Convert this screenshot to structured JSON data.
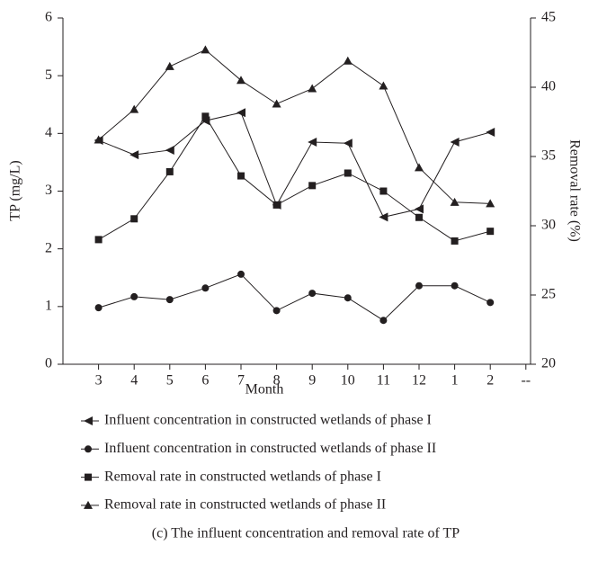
{
  "chart_data": {
    "type": "line",
    "caption": "(c) The influent concentration and removal rate of TP",
    "x_label": "Month",
    "y_label": "TP (mg/L)",
    "y2_label": "Removal rate (%)",
    "categories": [
      "3",
      "4",
      "5",
      "6",
      "7",
      "8",
      "9",
      "10",
      "11",
      "12",
      "1",
      "2",
      "--"
    ],
    "ylim": [
      0,
      6
    ],
    "yticks": [
      0,
      1,
      2,
      3,
      4,
      5,
      6
    ],
    "y2lim": [
      20,
      45
    ],
    "y2ticks": [
      20,
      25,
      30,
      35,
      40,
      45
    ],
    "series": [
      {
        "name": "Influent concentration in constructed wetlands of phase I",
        "color": "#231f20",
        "marker": "triangle-left",
        "values": [
          3.88,
          3.63,
          3.71,
          4.22,
          4.36,
          2.76,
          3.85,
          3.83,
          2.55,
          2.69,
          3.85,
          4.02,
          null
        ]
      },
      {
        "name": "Influent concentration in constructed wetlands of phase II",
        "color": "#231f20",
        "marker": "circle",
        "values": [
          0.98,
          1.17,
          1.12,
          1.32,
          1.56,
          0.93,
          1.23,
          1.15,
          0.76,
          1.36,
          1.36,
          1.07,
          null
        ]
      },
      {
        "name": "Removal rate in constructed wetlands of phase I",
        "color": "#231f20",
        "marker": "square",
        "axis": "y2",
        "values": [
          29.0,
          30.5,
          33.9,
          37.9,
          33.6,
          31.5,
          32.9,
          33.8,
          32.5,
          30.6,
          28.9,
          29.6,
          null
        ]
      },
      {
        "name": "Removal rate in constructed wetlands of phase II",
        "color": "#231f20",
        "marker": "triangle-up",
        "axis": "y2",
        "values": [
          36.2,
          38.4,
          41.5,
          42.7,
          40.5,
          38.8,
          39.9,
          41.9,
          40.1,
          34.2,
          31.7,
          31.6,
          null
        ]
      }
    ]
  }
}
